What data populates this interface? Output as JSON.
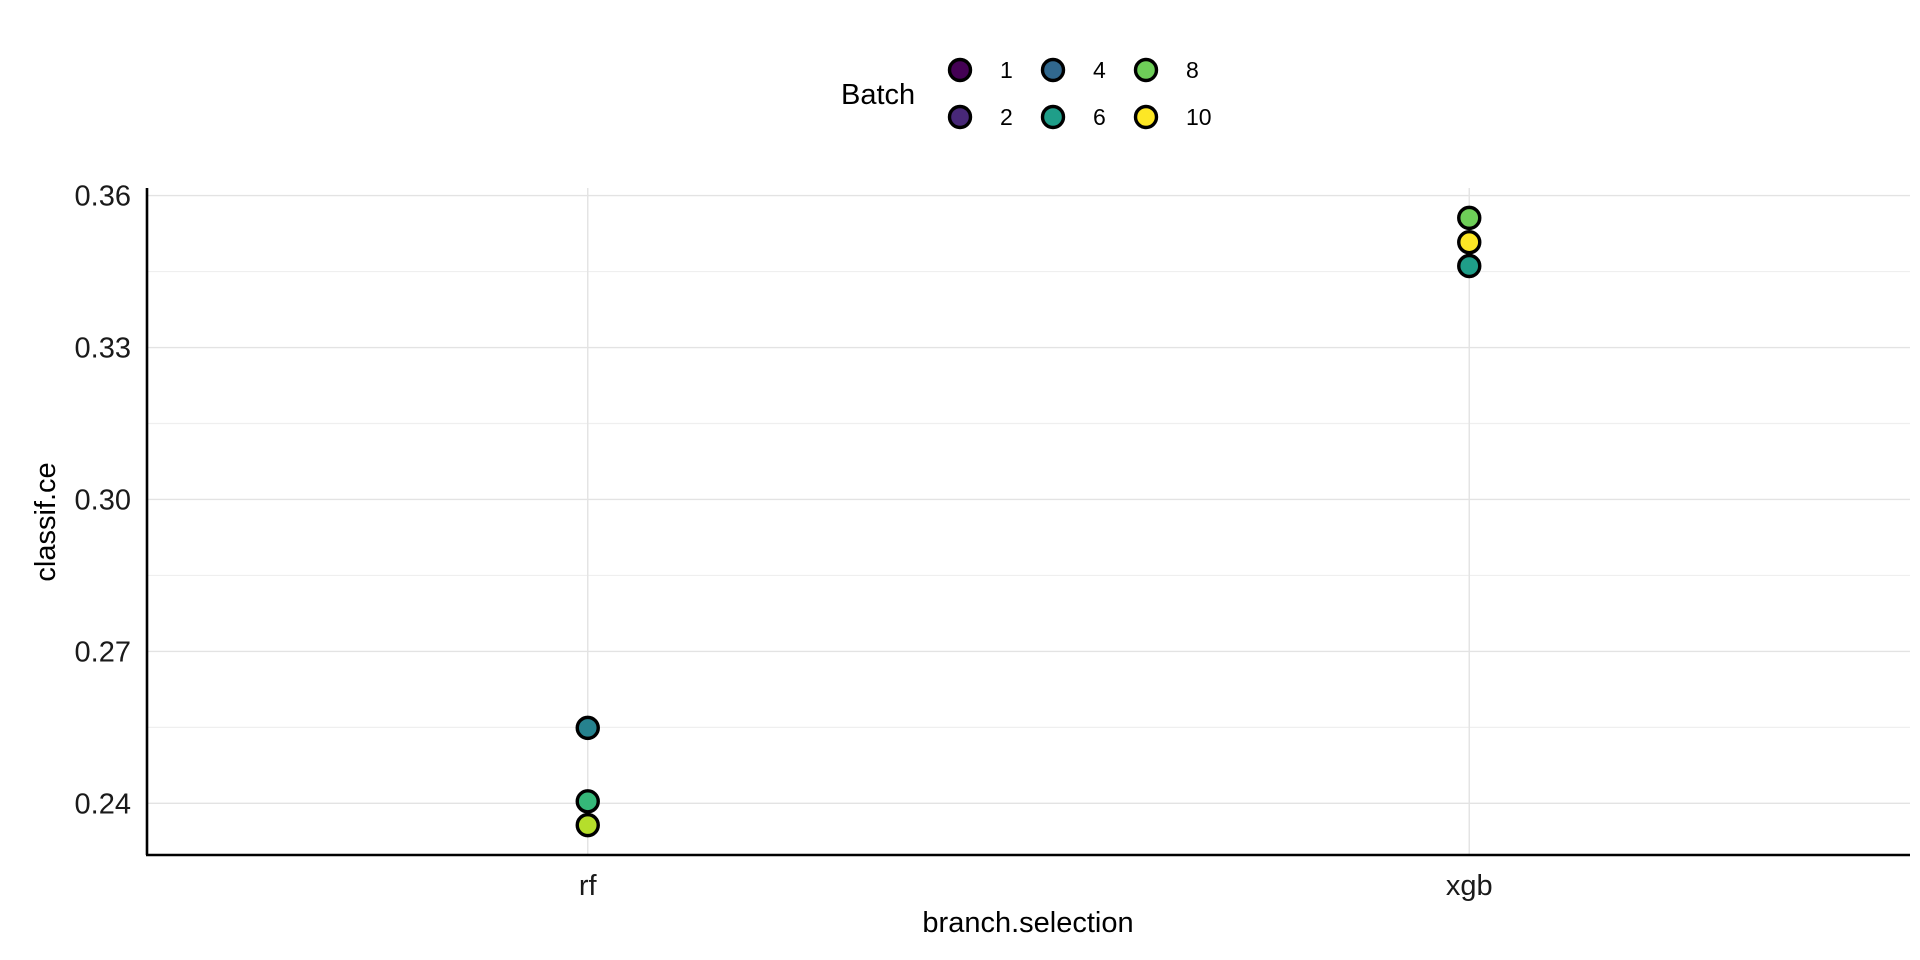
{
  "chart_data": {
    "type": "scatter",
    "title": "",
    "xlabel": "branch.selection",
    "ylabel": "classif.ce",
    "categories": [
      "rf",
      "xgb"
    ],
    "y_ticks": [
      0.24,
      0.27,
      0.3,
      0.33,
      0.36
    ],
    "y_tick_labels": [
      "0.24",
      "0.27",
      "0.30",
      "0.33",
      "0.36"
    ],
    "ylim": [
      0.2298,
      0.3615
    ],
    "grid": true,
    "legend": {
      "title": "Batch",
      "placement": "top",
      "entries": [
        {
          "label": "1",
          "color": "#440154"
        },
        {
          "label": "2",
          "color": "#482878"
        },
        {
          "label": "4",
          "color": "#31688e"
        },
        {
          "label": "6",
          "color": "#1f9e89"
        },
        {
          "label": "8",
          "color": "#6ece58"
        },
        {
          "label": "10",
          "color": "#fde725"
        }
      ]
    },
    "points": [
      {
        "x": "rf",
        "y": 0.2549,
        "color": "#26828e"
      },
      {
        "x": "rf",
        "y": 0.2404,
        "color": "#35b779"
      },
      {
        "x": "rf",
        "y": 0.2357,
        "color": "#b5de2b"
      },
      {
        "x": "xgb",
        "y": 0.3556,
        "color": "#6ece58"
      },
      {
        "x": "xgb",
        "y": 0.3508,
        "color": "#fde725"
      },
      {
        "x": "xgb",
        "y": 0.3461,
        "color": "#1f9e89"
      }
    ]
  }
}
